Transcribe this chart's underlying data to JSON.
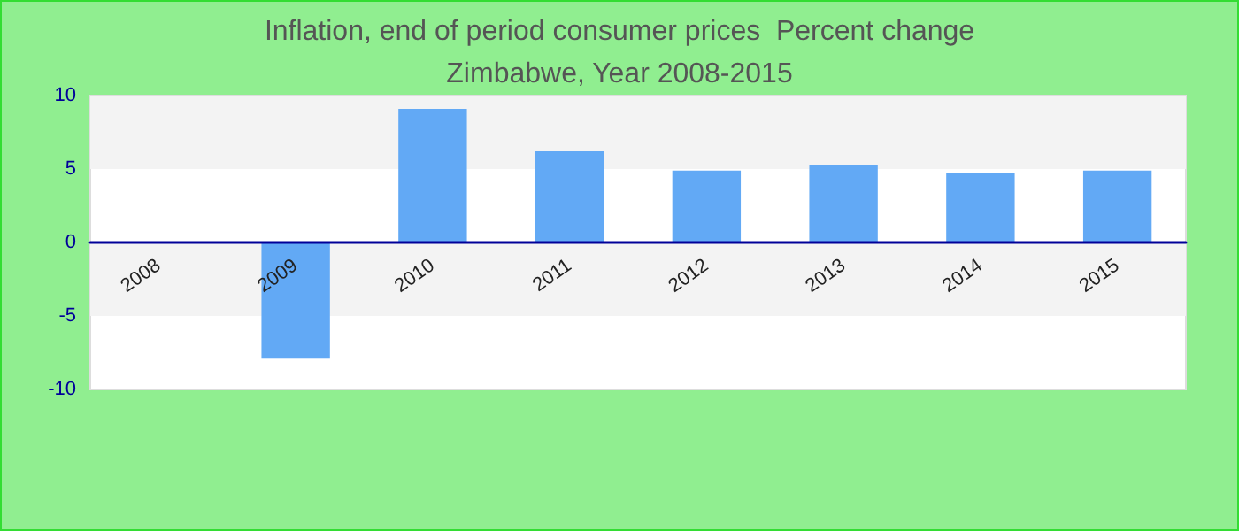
{
  "chart_data": {
    "type": "bar",
    "title": "Inflation, end of period consumer prices  Percent change",
    "subtitle": "Zimbabwe, Year 2008-2015",
    "categories": [
      "2008",
      "2009",
      "2010",
      "2011",
      "2012",
      "2013",
      "2014",
      "2015"
    ],
    "values": [
      null,
      -7.9,
      9.1,
      6.2,
      4.9,
      5.3,
      4.7,
      4.9
    ],
    "color": "#62a9f5",
    "ylim": [
      -10,
      10
    ],
    "yticks": [
      -10,
      -5,
      0,
      5,
      10
    ],
    "bands": [
      {
        "axis": "y",
        "from": 5,
        "to": 10,
        "color": "#f3f3f3"
      },
      {
        "axis": "y",
        "from": -5,
        "to": 0,
        "color": "#f3f3f3"
      }
    ]
  }
}
